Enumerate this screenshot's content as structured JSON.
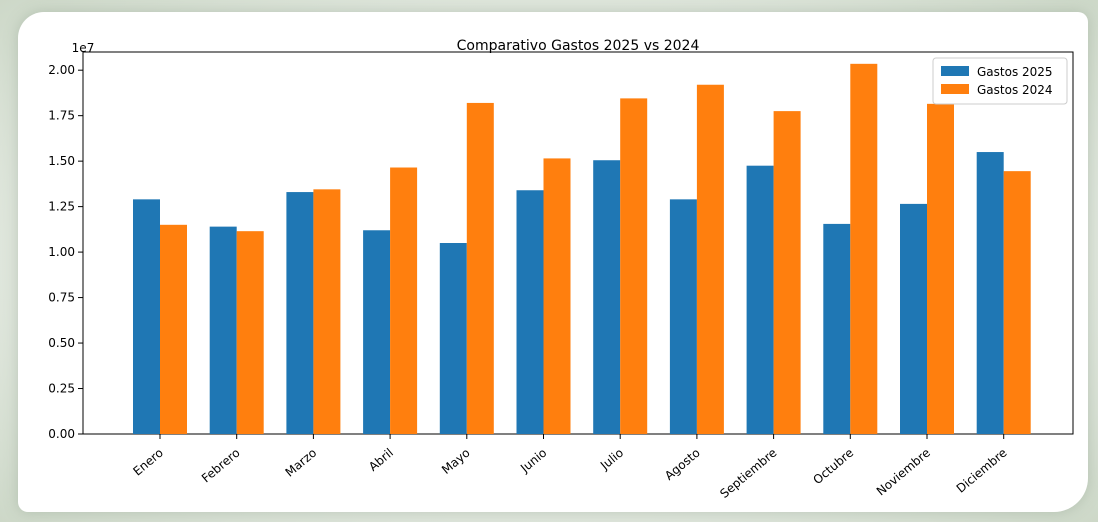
{
  "chart_data": {
    "type": "bar",
    "title": "Comparativo Gastos 2025 vs 2024",
    "scale_label": "1e7",
    "xlabel": "",
    "ylabel": "",
    "ylim": [
      0,
      2.1
    ],
    "yticks": [
      "0.00",
      "0.25",
      "0.50",
      "0.75",
      "1.00",
      "1.25",
      "1.50",
      "1.75",
      "2.00"
    ],
    "ytick_values": [
      0,
      0.25,
      0.5,
      0.75,
      1.0,
      1.25,
      1.5,
      1.75,
      2.0
    ],
    "categories": [
      "Enero",
      "Febrero",
      "Marzo",
      "Abril",
      "Mayo",
      "Junio",
      "Julio",
      "Agosto",
      "Septiembre",
      "Octubre",
      "Noviembre",
      "Diciembre"
    ],
    "series": [
      {
        "name": "Gastos 2025",
        "color": "#1f77b4",
        "values": [
          1.29,
          1.14,
          1.33,
          1.12,
          1.05,
          1.34,
          1.505,
          1.29,
          1.475,
          1.155,
          1.265,
          1.55
        ]
      },
      {
        "name": "Gastos 2024",
        "color": "#ff7f0e",
        "values": [
          1.15,
          1.115,
          1.345,
          1.465,
          1.82,
          1.515,
          1.845,
          1.92,
          1.775,
          2.035,
          1.815,
          1.445
        ]
      }
    ],
    "grid": false,
    "legend_position": "upper right"
  }
}
